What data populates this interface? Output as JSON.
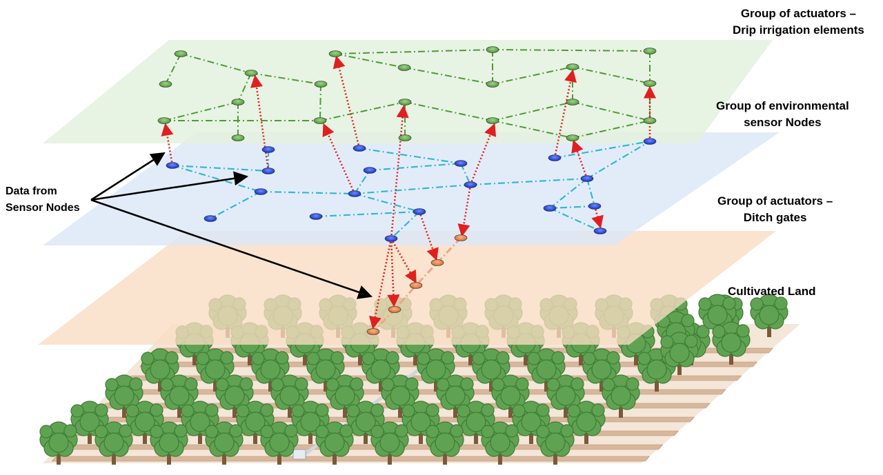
{
  "labels": {
    "drip": {
      "line1": "Group of actuators –",
      "line2": "Drip irrigation elements"
    },
    "env": {
      "line1": "Group of environmental",
      "line2": "sensor Nodes"
    },
    "ditch": {
      "line1": "Group of actuators –",
      "line2": "Ditch gates"
    },
    "land": {
      "line1": "Cultivated Land"
    },
    "data": {
      "line1": "Data from",
      "line2": "Sensor Nodes"
    }
  },
  "layers": [
    {
      "name": "drip-irrigation-layer",
      "color": "#e3f1de"
    },
    {
      "name": "sensor-layer",
      "color": "#dce8f7"
    },
    {
      "name": "ditch-gate-layer",
      "color": "#f9dcc2"
    }
  ],
  "colors": {
    "drip_node": "#63a84a",
    "sensor_node": "#1f3fd6",
    "ditch_node": "#e8824a",
    "green_link": "#4d9a35",
    "cyan_link": "#33b6d6",
    "orange_link": "#f0a48a",
    "data_arrow": "#e02020",
    "callout_arrow": "#000000",
    "tree_canopy": "#5fa352",
    "tree_trunk": "#7a5a3a",
    "furrow": "#d8b89c"
  },
  "icons": {
    "tree": "tree-icon",
    "pipe": "drip-pipe-icon"
  }
}
